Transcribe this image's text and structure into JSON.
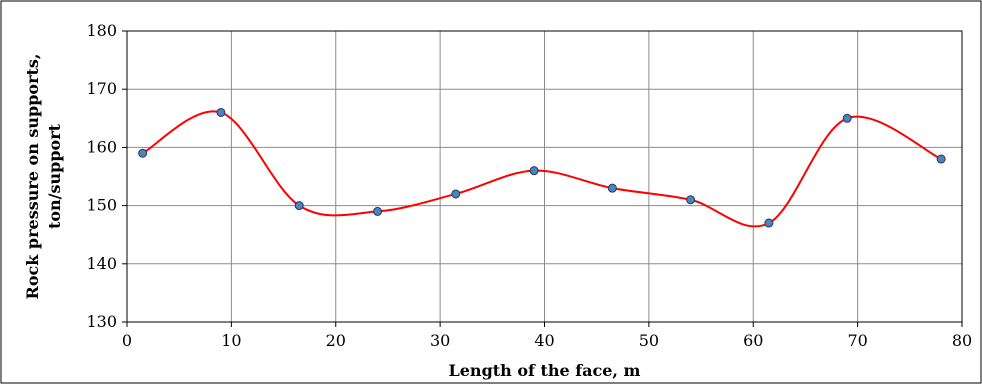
{
  "chart_data": {
    "type": "line",
    "title": "",
    "xlabel": "Length of the face, m",
    "ylabel_lines": [
      "Rock pressure on supports,",
      "ton/support"
    ],
    "xlim": [
      0,
      80
    ],
    "ylim": [
      130,
      180
    ],
    "x_ticks": [
      0,
      10,
      20,
      30,
      40,
      50,
      60,
      70,
      80
    ],
    "y_ticks": [
      130,
      140,
      150,
      160,
      170,
      180
    ],
    "grid": true,
    "legend": "none",
    "series": [
      {
        "line_color": "#ff0000",
        "marker_color": "#4f81bd",
        "smooth": true,
        "points": [
          {
            "x": 1.5,
            "y": 159
          },
          {
            "x": 9,
            "y": 166
          },
          {
            "x": 16.5,
            "y": 150
          },
          {
            "x": 24,
            "y": 149
          },
          {
            "x": 31.5,
            "y": 152
          },
          {
            "x": 39,
            "y": 156
          },
          {
            "x": 46.5,
            "y": 153
          },
          {
            "x": 54,
            "y": 151
          },
          {
            "x": 61.5,
            "y": 147
          },
          {
            "x": 69,
            "y": 165
          },
          {
            "x": 78,
            "y": 158
          }
        ]
      }
    ]
  }
}
